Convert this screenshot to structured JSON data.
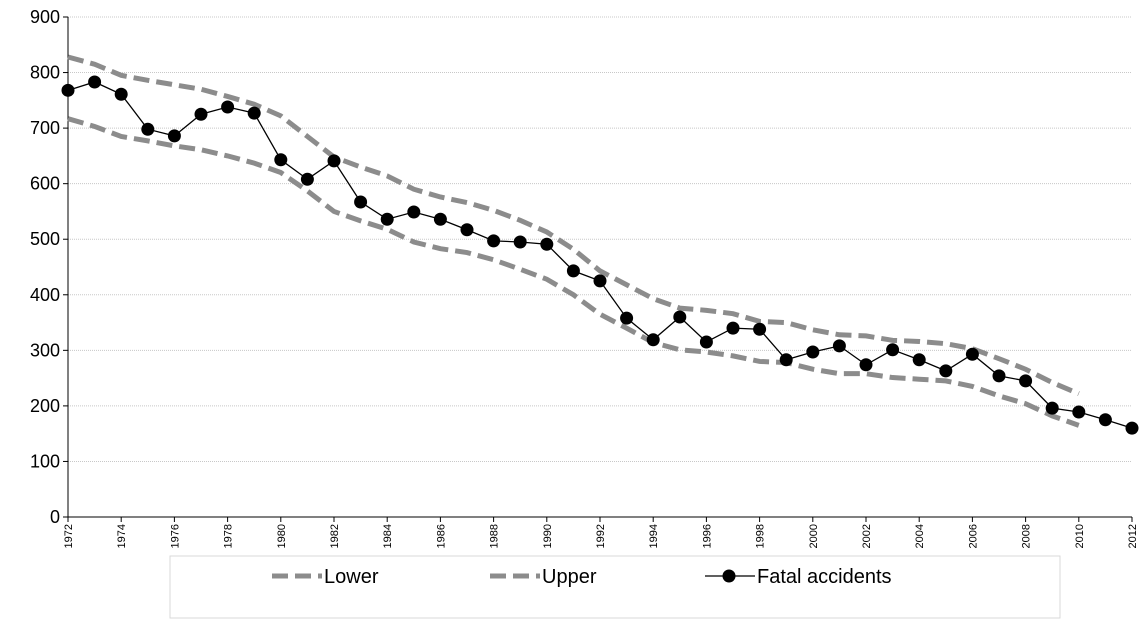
{
  "chart_data": {
    "type": "line",
    "x": [
      1972,
      1973,
      1974,
      1975,
      1976,
      1977,
      1978,
      1979,
      1980,
      1981,
      1982,
      1983,
      1984,
      1985,
      1986,
      1987,
      1988,
      1989,
      1990,
      1991,
      1992,
      1993,
      1994,
      1995,
      1996,
      1997,
      1998,
      1999,
      2000,
      2001,
      2002,
      2003,
      2004,
      2005,
      2006,
      2007,
      2008,
      2009,
      2010,
      2011,
      2012
    ],
    "xlim": [
      1972,
      2012
    ],
    "xticks": [
      1972,
      1974,
      1976,
      1978,
      1980,
      1982,
      1984,
      1986,
      1988,
      1990,
      1992,
      1994,
      1996,
      1998,
      2000,
      2002,
      2004,
      2006,
      2008,
      2010,
      2012
    ],
    "ylim": [
      0,
      900
    ],
    "yticks": [
      0,
      100,
      200,
      300,
      400,
      500,
      600,
      700,
      800,
      900
    ],
    "grid": true,
    "legend": "bottom",
    "series": [
      {
        "name": "Lower",
        "color": "#8c8c8c",
        "style": "dashed",
        "values": [
          717,
          703,
          685,
          677,
          668,
          661,
          650,
          637,
          620,
          587,
          550,
          533,
          518,
          495,
          483,
          476,
          463,
          446,
          428,
          400,
          365,
          340,
          314,
          301,
          297,
          290,
          280,
          278,
          266,
          258,
          258,
          251,
          248,
          245,
          235,
          218,
          204,
          182,
          165,
          null,
          null
        ]
      },
      {
        "name": "Upper",
        "color": "#8c8c8c",
        "style": "dashed",
        "values": [
          828,
          815,
          795,
          786,
          778,
          770,
          757,
          743,
          722,
          685,
          648,
          630,
          614,
          590,
          576,
          566,
          552,
          534,
          513,
          482,
          443,
          418,
          393,
          376,
          372,
          366,
          352,
          350,
          337,
          328,
          326,
          318,
          316,
          312,
          303,
          285,
          266,
          242,
          222,
          null,
          null
        ]
      },
      {
        "name": "Fatal accidents",
        "color": "#000000",
        "style": "solid",
        "marker": "circle",
        "values": [
          768,
          783,
          761,
          698,
          686,
          725,
          738,
          727,
          643,
          608,
          641,
          567,
          536,
          549,
          536,
          517,
          497,
          495,
          491,
          443,
          425,
          358,
          319,
          360,
          315,
          340,
          338,
          283,
          297,
          308,
          274,
          301,
          283,
          263,
          293,
          254,
          245,
          196,
          189,
          175,
          160
        ]
      }
    ]
  }
}
